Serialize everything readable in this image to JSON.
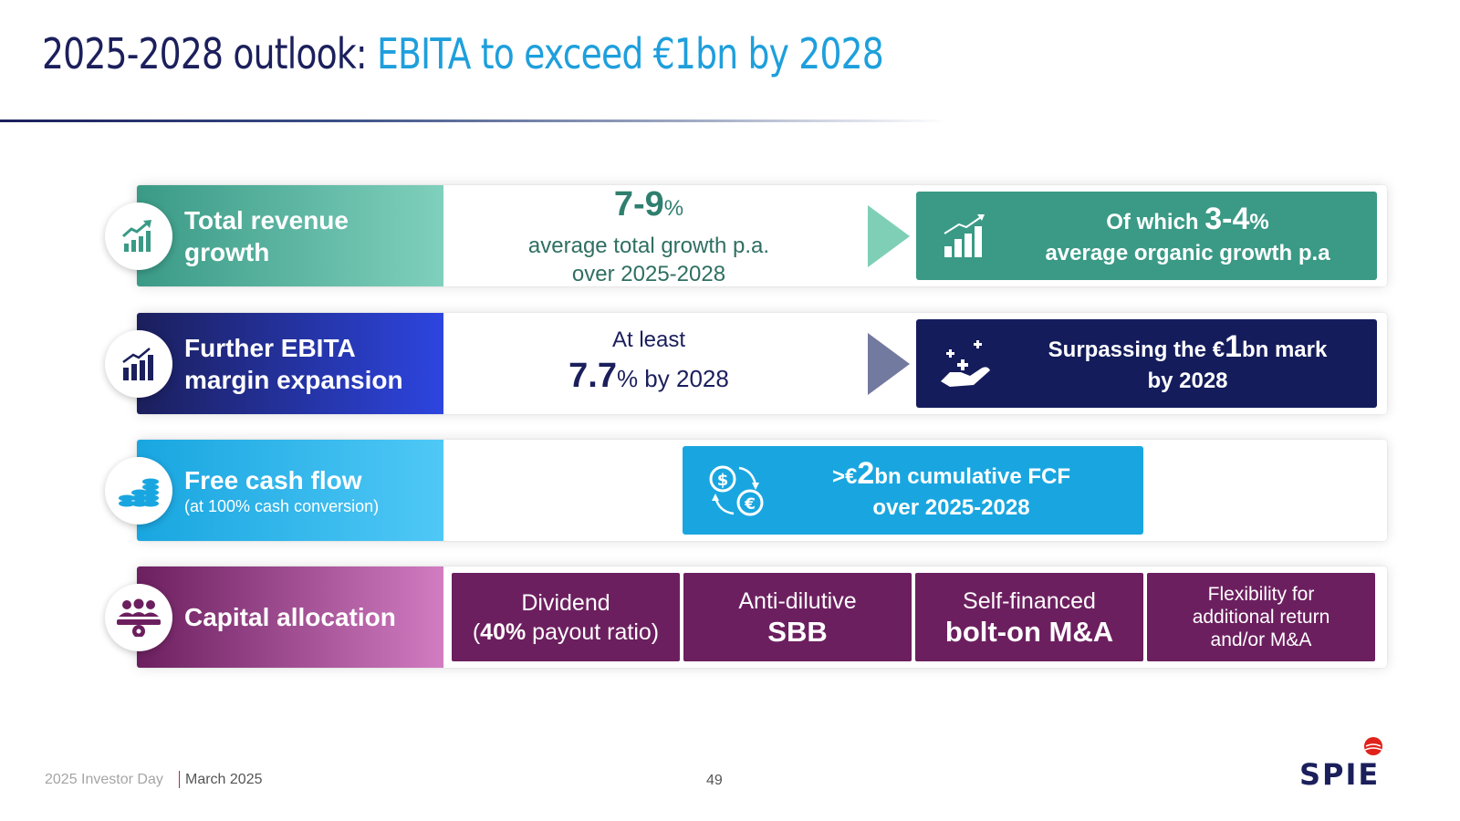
{
  "title": {
    "part1": "2025-2028 outlook: ",
    "part2": "EBITA to exceed €1bn by 2028"
  },
  "colors": {
    "navy": "#1b1f5c",
    "accent_blue": "#1e9fdc",
    "teal": "#3a9a86",
    "cyan": "#19a6e0",
    "purple": "#6c1f5f",
    "spie_red": "#e0221b"
  },
  "rows": {
    "revenue": {
      "icon": "growth-chart-icon",
      "label": "Total revenue growth",
      "mid_value": "7-9",
      "mid_unit": "%",
      "mid_line1": "average total growth p.a.",
      "mid_line2": "over 2025-2028",
      "right_prefix": "Of which ",
      "right_value": "3-4",
      "right_unit": "%",
      "right_line2": "average organic growth p.a",
      "right_icon": "bar-chart-trend-icon"
    },
    "ebita": {
      "icon": "bar-chart-up-icon",
      "label": "Further EBITA margin expansion",
      "mid_line1": "At least",
      "mid_value": "7.7",
      "mid_suffix": "% by 2028",
      "right_prefix": "Surpassing the €",
      "right_value": "1",
      "right_suffix": "bn mark",
      "right_line2": "by 2028",
      "right_icon": "hand-sparkle-icon"
    },
    "fcf": {
      "icon": "coins-stack-icon",
      "label": "Free cash flow",
      "sublabel": "(at 100% cash conversion)",
      "box_prefix": ">€",
      "box_value": "2",
      "box_suffix": "bn cumulative FCF",
      "box_line2": "over 2025-2028",
      "box_icon": "currency-exchange-icon"
    },
    "capital": {
      "icon": "team-gear-icon",
      "label": "Capital allocation",
      "boxes": [
        {
          "line1": "Dividend",
          "line2_pre": "(",
          "line2_bold": "40%",
          "line2_post": " payout ratio)"
        },
        {
          "line1": "Anti-dilutive",
          "line2": "SBB"
        },
        {
          "line1": "Self-financed",
          "line2": "bolt-on M&A"
        },
        {
          "line1": "Flexibility for",
          "line2": "additional return",
          "line3": "and/or M&A"
        }
      ]
    }
  },
  "footer": {
    "event": "2025 Investor Day",
    "date": "March 2025",
    "page": "49",
    "logo": "SPIE"
  }
}
